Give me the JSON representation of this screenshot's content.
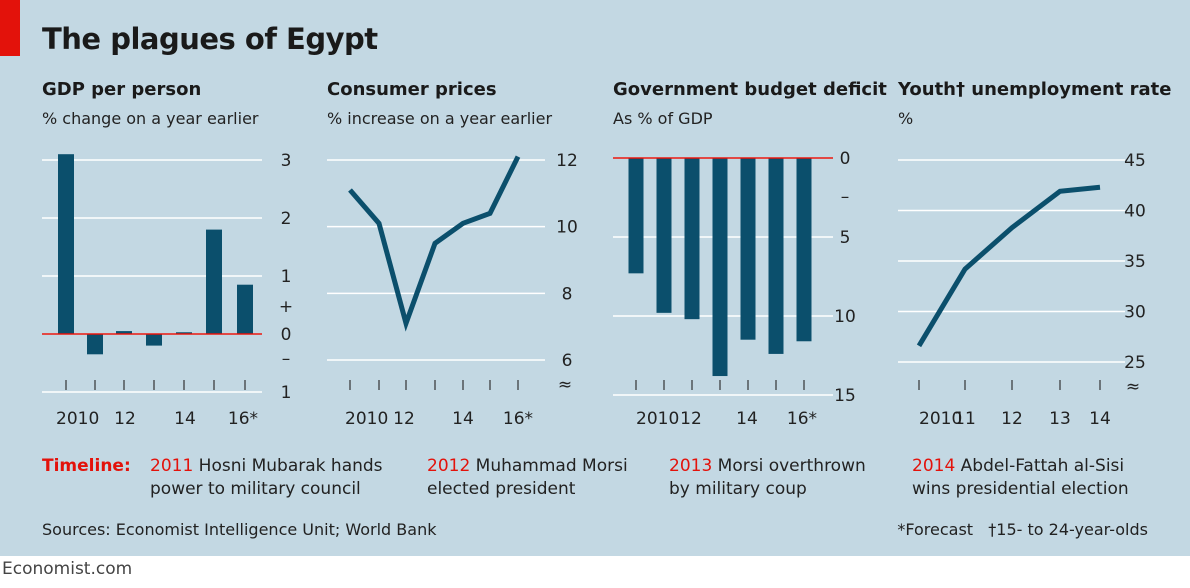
{
  "title": "The plagues of Egypt",
  "colors": {
    "bar": "#0b4f6c",
    "line": "#0b4f6c",
    "zero": "#e3120b",
    "accent": "#e3120b",
    "grid": "#ffffff",
    "background": "#c3d8e3"
  },
  "chart_data": [
    {
      "type": "bar",
      "title": "GDP per person",
      "subtitle": "% change on a year earlier",
      "categories": [
        "2010",
        "2011",
        "2012",
        "2013",
        "2014",
        "2015",
        "2016*"
      ],
      "values": [
        3.1,
        -0.35,
        0.05,
        -0.2,
        0.03,
        1.8,
        0.85
      ],
      "ylim": [
        -1,
        3
      ],
      "yticks": [
        3,
        2,
        1,
        0,
        -1
      ],
      "ytick_labels": [
        "3",
        "2",
        "1",
        "0",
        "1"
      ],
      "sign_marks": [
        "+",
        "–"
      ],
      "xtick_labels": [
        "2010",
        "12",
        "14",
        "16*"
      ],
      "zero_line": true
    },
    {
      "type": "line",
      "title": "Consumer prices",
      "subtitle": "% increase on a year earlier",
      "x": [
        "2010",
        "2011",
        "2012",
        "2013",
        "2014",
        "2015",
        "2016*"
      ],
      "values": [
        11.1,
        10.1,
        7.1,
        9.5,
        10.1,
        10.4,
        12.1
      ],
      "ylim": [
        6,
        12
      ],
      "yticks": [
        12,
        10,
        8,
        6
      ],
      "ytick_labels": [
        "12",
        "10",
        "8",
        "6"
      ],
      "xtick_labels": [
        "2010",
        "12",
        "14",
        "16*"
      ],
      "axis_break": true
    },
    {
      "type": "bar",
      "title": "Government budget deficit",
      "subtitle": "As % of GDP",
      "categories": [
        "2010",
        "2011",
        "2012",
        "2013",
        "2014",
        "2015",
        "2016*"
      ],
      "values": [
        -7.3,
        -9.8,
        -10.2,
        -13.8,
        -11.5,
        -12.4,
        -11.6
      ],
      "ylim": [
        -15,
        0
      ],
      "yticks": [
        0,
        -5,
        -10,
        -15
      ],
      "ytick_labels": [
        "0",
        "5",
        "10",
        "15"
      ],
      "sign_marks": [
        "–"
      ],
      "xtick_labels": [
        "2010",
        "12",
        "14",
        "16*"
      ],
      "zero_line": true
    },
    {
      "type": "line",
      "title": "Youth† unemployment rate",
      "subtitle": "%",
      "x": [
        "2010",
        "2011",
        "2012",
        "2013",
        "2014"
      ],
      "values": [
        26.6,
        34.2,
        38.3,
        41.9,
        42.3
      ],
      "ylim": [
        25,
        45
      ],
      "yticks": [
        45,
        40,
        35,
        30,
        25
      ],
      "ytick_labels": [
        "45",
        "40",
        "35",
        "30",
        "25"
      ],
      "xtick_labels": [
        "2010",
        "11",
        "12",
        "13",
        "14"
      ],
      "axis_break": true
    }
  ],
  "timeline": {
    "label": "Timeline:",
    "events": [
      {
        "year": "2011",
        "line1": "Hosni Mubarak hands",
        "line2": "power to military council"
      },
      {
        "year": "2012",
        "line1": "Muhammad Morsi",
        "line2": "elected president"
      },
      {
        "year": "2013",
        "line1": "Morsi overthrown",
        "line2": "by military coup"
      },
      {
        "year": "2014",
        "line1": "Abdel-Fattah al-Sisi",
        "line2": "wins presidential election"
      }
    ]
  },
  "footer": {
    "sources": "Sources: Economist Intelligence Unit; World Bank",
    "notes": "*Forecast   †15- to 24-year-olds"
  },
  "brand": "Economist.com"
}
